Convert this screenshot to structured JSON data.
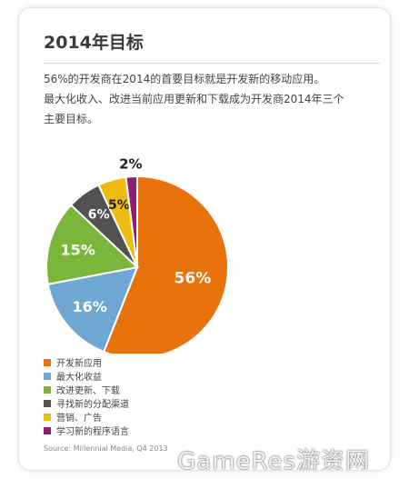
{
  "title": "2014年目标",
  "description": [
    "56%的开发商在2014的首要目标就是开发新的移动应用。",
    "最大化收入、改进当前应用更新和下载成为开发商2014年三个",
    "主要目标。"
  ],
  "chart_data": {
    "type": "pie",
    "categories": [
      "开发新应用",
      "最大化收益",
      "改进更新、下载",
      "寻找新的分配渠道",
      "营销、广告",
      "学习新的程序语言"
    ],
    "values": [
      56,
      16,
      15,
      6,
      5,
      2
    ],
    "labels": [
      "56%",
      "16%",
      "15%",
      "6%",
      "5%",
      "2%"
    ],
    "colors": [
      "#e8720c",
      "#6ea8d2",
      "#7ab63b",
      "#525252",
      "#eebb10",
      "#8d1e72"
    ],
    "label_colors": [
      "#ffffff",
      "#ffffff",
      "#ffffff",
      "#ffffff",
      "#222222",
      "#222222"
    ],
    "legend_position": "bottom-left"
  },
  "source": "Source: Millennial Media, Q4 2013",
  "watermark": "GameRes游资网"
}
